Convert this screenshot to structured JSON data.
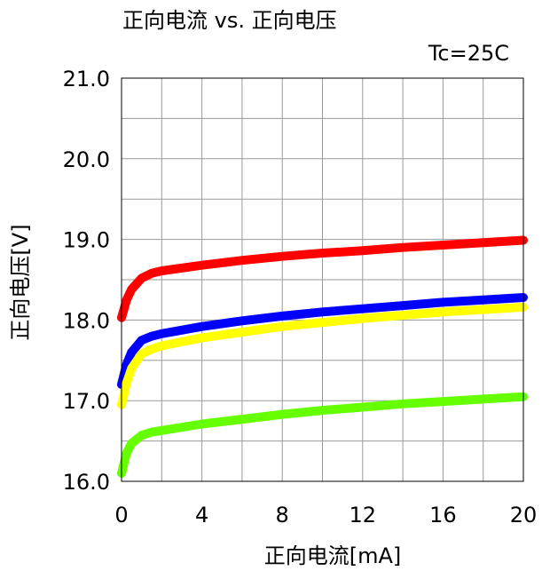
{
  "chart_data": {
    "type": "line",
    "title": "正向电流 vs. 正向电压",
    "condition": "Tc=25C",
    "xlabel": "正向电流[mA]",
    "ylabel": "正向电压[V]",
    "xlim": [
      0,
      20
    ],
    "ylim": [
      16.0,
      21.0
    ],
    "xticks": [
      0,
      4,
      8,
      12,
      16,
      20
    ],
    "xtick_labels": [
      "0",
      "4",
      "8",
      "12",
      "16",
      "20"
    ],
    "yticks": [
      16.0,
      17.0,
      18.0,
      19.0,
      20.0,
      21.0
    ],
    "ytick_labels": [
      "16.0",
      "17.0",
      "18.0",
      "19.0",
      "20.0",
      "21.0"
    ],
    "grid": true,
    "x": [
      0,
      0.25,
      0.5,
      1,
      1.5,
      2,
      4,
      6,
      8,
      10,
      12,
      14,
      16,
      18,
      20
    ],
    "series": [
      {
        "color": "#ff0000",
        "values": [
          18.03,
          18.25,
          18.38,
          18.52,
          18.58,
          18.61,
          18.68,
          18.74,
          18.79,
          18.83,
          18.86,
          18.9,
          18.93,
          18.96,
          18.99
        ]
      },
      {
        "color": "#0000ff",
        "values": [
          17.2,
          17.45,
          17.6,
          17.75,
          17.8,
          17.83,
          17.92,
          17.99,
          18.05,
          18.1,
          18.14,
          18.18,
          18.22,
          18.25,
          18.28
        ]
      },
      {
        "color": "#ffff00",
        "values": [
          16.95,
          17.22,
          17.4,
          17.58,
          17.64,
          17.68,
          17.78,
          17.85,
          17.92,
          17.97,
          18.02,
          18.06,
          18.1,
          18.13,
          18.16
        ]
      },
      {
        "color": "#66ff00",
        "values": [
          16.1,
          16.35,
          16.47,
          16.57,
          16.61,
          16.63,
          16.71,
          16.77,
          16.83,
          16.88,
          16.92,
          16.96,
          16.99,
          17.02,
          17.05
        ]
      }
    ]
  }
}
